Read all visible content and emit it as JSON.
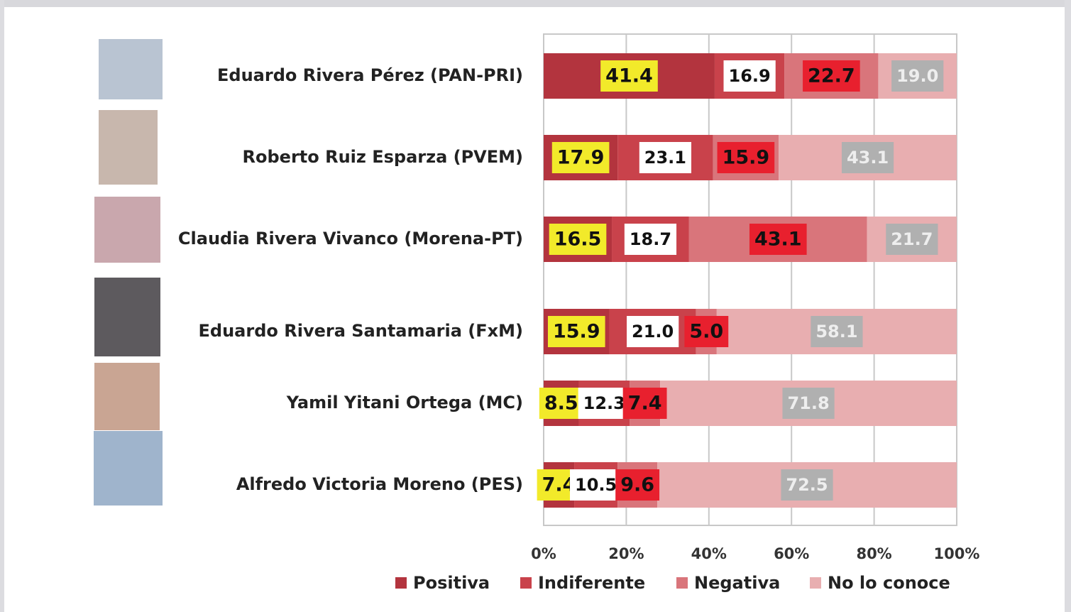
{
  "chart_data": {
    "type": "stacked-barh",
    "categories": [
      "Eduardo Rivera Pérez (PAN-PRI)",
      "Roberto Ruiz Esparza (PVEM)",
      "Claudia Rivera Vivanco (Morena-PT)",
      "Eduardo Rivera Santamaria (FxM)",
      "Yamil Yitani Ortega (MC)",
      "Alfredo Victoria Moreno (PES)"
    ],
    "series": [
      {
        "name": "Positiva",
        "color": "#b3343e",
        "values": [
          41.4,
          17.9,
          16.5,
          15.9,
          8.5,
          7.4
        ],
        "value_labels": [
          "41.4",
          "17.9",
          "16.5",
          "15.9",
          "8.5",
          "7.4"
        ]
      },
      {
        "name": "Indiferente",
        "color": "#c9424b",
        "values": [
          16.9,
          23.1,
          18.7,
          21.0,
          12.3,
          10.5
        ],
        "value_labels": [
          "16.9",
          "23.1",
          "18.7",
          "21.0",
          "12.3",
          "10.5"
        ]
      },
      {
        "name": "Negativa",
        "color": "#d9757b",
        "values": [
          22.7,
          15.9,
          43.1,
          5.0,
          7.4,
          9.6
        ],
        "value_labels": [
          "22.7",
          "15.9",
          "43.1",
          "5.0",
          "7.4",
          "9.6"
        ]
      },
      {
        "name": "No lo conoce",
        "color": "#e8aeb0",
        "values": [
          19.0,
          43.1,
          21.7,
          58.1,
          71.8,
          72.5
        ],
        "value_labels": [
          "19.0",
          "43.1",
          "21.7",
          "58.1",
          "71.8",
          "72.5"
        ]
      }
    ],
    "xlim": [
      0,
      100
    ],
    "xticks": [
      {
        "value": 0,
        "label": "0%"
      },
      {
        "value": 20,
        "label": "20%"
      },
      {
        "value": 40,
        "label": "40%"
      },
      {
        "value": 60,
        "label": "60%"
      },
      {
        "value": 80,
        "label": "80%"
      },
      {
        "value": 100,
        "label": "100%"
      }
    ],
    "grid": true
  }
}
